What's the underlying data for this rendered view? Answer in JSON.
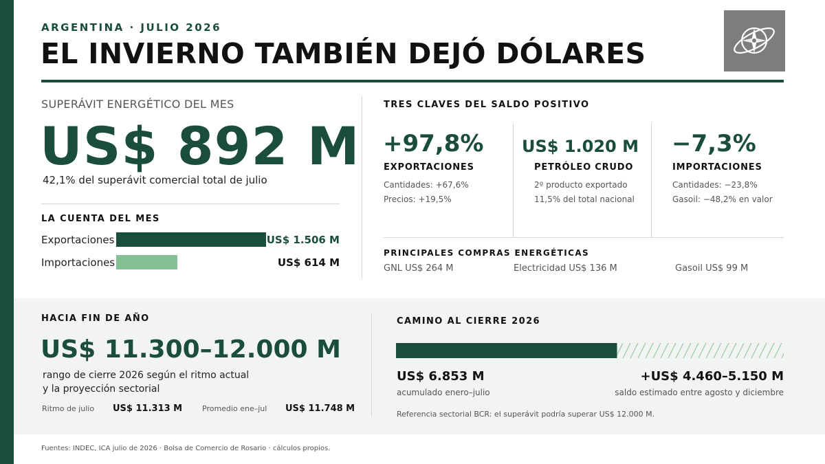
{
  "header": {
    "kicker": "ARGENTINA · JULIO 2026",
    "title": "EL INVIERNO TAMBIÉN DEJÓ DÓLARES",
    "logo_icon": "compass-globe-icon"
  },
  "colors": {
    "brand": "#1a4d3c",
    "light_bar": "#84bf95",
    "panel": "#f2f4f3"
  },
  "surplus": {
    "heading": "SUPERÁVIT ENERGÉTICO DEL MES",
    "value": "US$ 892 M",
    "sub": "42,1% del superávit comercial total de julio"
  },
  "month_account": {
    "heading": "LA CUENTA DEL MES",
    "rows": [
      {
        "label": "Exportaciones",
        "value": "US$ 1.506 M",
        "amount": 1506
      },
      {
        "label": "Importaciones",
        "value": "US$ 614 M",
        "amount": 614
      }
    ]
  },
  "keys": {
    "heading": "TRES CLAVES DEL SALDO POSITIVO",
    "items": [
      {
        "value": "+97,8%",
        "label": "EXPORTACIONES",
        "notes": [
          "Cantidades: +67,6%",
          "Precios: +19,5%"
        ]
      },
      {
        "value": "US$ 1.020 M",
        "label": "PETRÓLEO CRUDO",
        "notes": [
          "2º producto exportado",
          "11,5% del total nacional"
        ]
      },
      {
        "value": "−7,3%",
        "label": "IMPORTACIONES",
        "notes": [
          "Cantidades: −23,8%",
          "Gasoil: −48,2% en valor"
        ]
      }
    ]
  },
  "purchases": {
    "heading": "PRINCIPALES COMPRAS ENERGÉTICAS",
    "items": [
      "GNL US$ 264 M",
      "Electricidad US$ 136 M",
      "Gasoil US$ 99 M"
    ]
  },
  "year_end": {
    "heading": "HACIA FIN DE AÑO",
    "range": "US$ 11.300–12.000 M",
    "desc_line1": "rango de cierre 2026 según el ritmo actual",
    "desc_line2": "y la proyección sectorial",
    "metrics": [
      {
        "label": "Ritmo de julio",
        "value": "US$ 11.313 M"
      },
      {
        "label": "Promedio ene–jul",
        "value": "US$ 11.748 M"
      }
    ]
  },
  "road": {
    "heading": "CAMINO AL CIERRE 2026",
    "accumulated_share": 0.57,
    "accumulated_value": "US$ 6.853 M",
    "accumulated_caption": "acumulado enero–julio",
    "estimated_value": "+US$ 4.460–5.150 M",
    "estimated_caption": "saldo estimado entre agosto y diciembre",
    "reference": "Referencia sectorial BCR: el superávit podría superar US$ 12.000 M."
  },
  "footer": "Fuentes: INDEC, ICA julio de 2026 · Bolsa de Comercio de Rosario · cálculos propios."
}
